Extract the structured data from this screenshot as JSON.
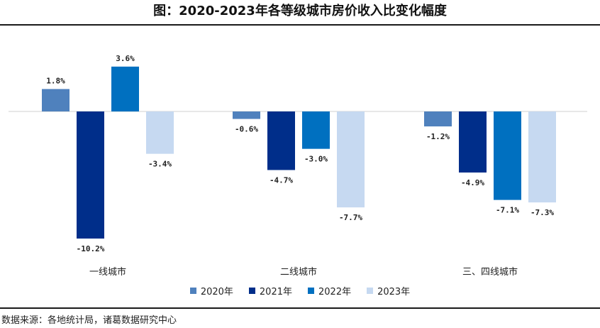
{
  "title": "图：2020-2023年各等级城市房价收入比变化幅度",
  "source": "数据来源：各地统计局，诸葛数据研究中心",
  "chart_data": {
    "type": "bar",
    "categories": [
      "一线城市",
      "二线城市",
      "三、四线城市"
    ],
    "series": [
      {
        "name": "2020年",
        "values": [
          1.8,
          -0.6,
          -1.2
        ],
        "labels": [
          "1.8%",
          "-0.6%",
          "-1.2%"
        ],
        "color": "#4F81BD"
      },
      {
        "name": "2021年",
        "values": [
          -10.2,
          -4.7,
          -4.9
        ],
        "labels": [
          "-10.2%",
          "-4.7%",
          "-4.9%"
        ],
        "color": "#002E8A"
      },
      {
        "name": "2022年",
        "values": [
          3.6,
          -3.0,
          -7.1
        ],
        "labels": [
          "3.6%",
          "-3.0%",
          "-7.1%"
        ],
        "color": "#0070C0"
      },
      {
        "name": "2023年",
        "values": [
          -3.4,
          -7.7,
          -7.3
        ],
        "labels": [
          "-3.4%",
          "-7.7%",
          "-7.3%"
        ],
        "color": "#C6D9F1"
      }
    ],
    "ylim": [
      -11,
      4.5
    ],
    "grid": false,
    "legend_position": "bottom"
  }
}
